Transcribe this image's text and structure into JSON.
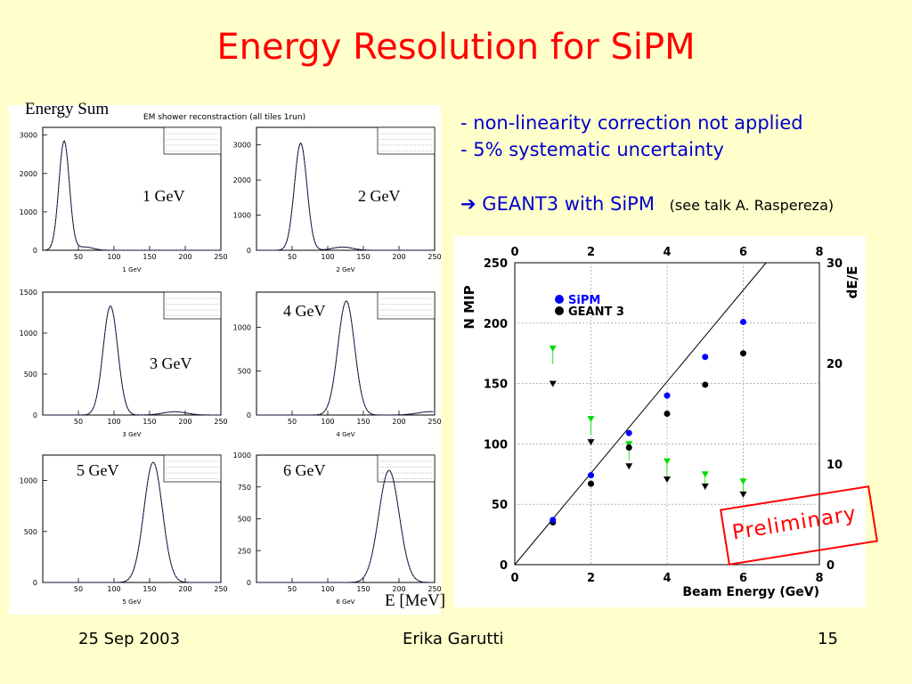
{
  "title": "Energy Resolution for SiPM",
  "left": {
    "energy_sum_label": "Energy Sum",
    "xaxis_unit": "E [MeV]",
    "histograms": {
      "main_title": "EM shower reconstraction (all tiles 1run)",
      "panels": [
        {
          "label": "1 GeV",
          "xlabel": "1 GeV",
          "yticks": [
            "3000",
            "2000",
            "1000",
            "0"
          ],
          "xticks": [
            "50",
            "100",
            "150",
            "200",
            "250"
          ],
          "peak": 30,
          "height": 2850,
          "ymax": 3200
        },
        {
          "label": "2 GeV",
          "xlabel": "2 GeV",
          "yticks": [
            "3000",
            "2000",
            "1000",
            "0"
          ],
          "xticks": [
            "50",
            "100",
            "150",
            "200",
            "250"
          ],
          "peak": 62,
          "height": 3050,
          "ymax": 3500
        },
        {
          "label": "3 GeV",
          "xlabel": "3 GeV",
          "yticks": [
            "1500",
            "1000",
            "500",
            "0"
          ],
          "xticks": [
            "50",
            "100",
            "150",
            "200",
            "250"
          ],
          "peak": 95,
          "height": 1330,
          "ymax": 1500
        },
        {
          "label": "4 GeV",
          "xlabel": "4 GeV",
          "yticks": [
            "1000",
            "500",
            "0"
          ],
          "xticks": [
            "50",
            "100",
            "150",
            "200",
            "250"
          ],
          "peak": 126,
          "height": 1300,
          "ymax": 1400
        },
        {
          "label": "5 GeV",
          "xlabel": "5 GeV",
          "yticks": [
            "1000",
            "500",
            "0"
          ],
          "xticks": [
            "50",
            "100",
            "150",
            "200",
            "250"
          ],
          "peak": 155,
          "height": 1180,
          "ymax": 1250
        },
        {
          "label": "6 GeV",
          "xlabel": "6 GeV",
          "yticks": [
            "1000",
            "750",
            "500",
            "250",
            "0"
          ],
          "xticks": [
            "50",
            "100",
            "150",
            "200",
            "250"
          ],
          "peak": 186,
          "height": 880,
          "ymax": 1000
        }
      ]
    }
  },
  "bullets": [
    "- non-linearity correction not applied",
    "- 5% systematic uncertainty"
  ],
  "geant_line": {
    "arrow": "➔",
    "text": "GEANT3 with SiPM",
    "note": "(see talk A. Raspereza)"
  },
  "chart_data": {
    "type": "scatter",
    "title": "",
    "xlabel": "Beam Energy (GeV)",
    "ylabel": "N MIP",
    "y2label": "dE/E",
    "xlim": [
      0,
      8
    ],
    "ylim": [
      0,
      250
    ],
    "y2lim": [
      0,
      30
    ],
    "xticks": [
      "0",
      "2",
      "4",
      "6",
      "8"
    ],
    "yticks": [
      "0",
      "50",
      "100",
      "150",
      "200",
      "250"
    ],
    "y2ticks": [
      "0",
      "10",
      "20",
      "30"
    ],
    "grid": true,
    "legend_position": "top-left",
    "series": [
      {
        "name": "SiPM",
        "color": "#0000ff",
        "marker": "circle",
        "x": [
          1,
          2,
          3,
          4,
          5,
          6
        ],
        "y": [
          37,
          74,
          109,
          140,
          172,
          201
        ]
      },
      {
        "name": "GEANT 3",
        "color": "#000000",
        "marker": "circle",
        "x": [
          1,
          2,
          3,
          4,
          5,
          6
        ],
        "y": [
          35,
          67,
          97,
          125,
          149,
          175
        ]
      }
    ],
    "resolution_series": [
      {
        "color": "#00dd00",
        "marker": "triangle-down",
        "x": [
          1,
          2,
          3,
          4,
          5,
          6
        ],
        "y2": [
          21.5,
          14.5,
          12,
          10.3,
          9,
          8.3
        ]
      },
      {
        "color": "#000000",
        "marker": "triangle-down",
        "x": [
          1,
          2,
          3,
          4,
          5,
          6
        ],
        "y2": [
          18,
          12.2,
          9.8,
          8.5,
          7.8,
          7
        ]
      }
    ],
    "fit_line": {
      "x": [
        0,
        6.6
      ],
      "y": [
        0,
        250
      ]
    }
  },
  "preliminary": "Preliminary",
  "footer": {
    "date": "25 Sep 2003",
    "author": "Erika Garutti",
    "page": "15"
  }
}
